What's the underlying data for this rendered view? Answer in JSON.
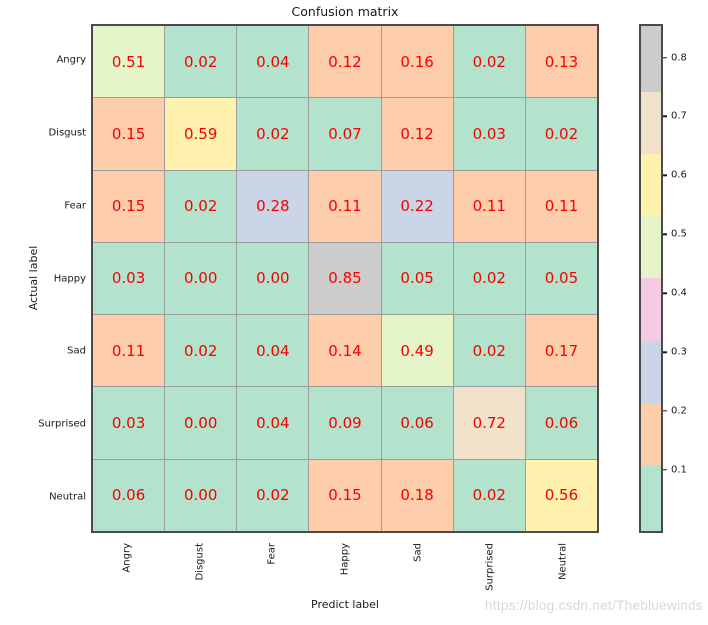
{
  "watermark": "https://blog.csdn.net/Thebluewinds",
  "chart_data": {
    "type": "heatmap",
    "title": "Confusion matrix",
    "xlabel": "Predict label",
    "ylabel": "Actual label",
    "categories": [
      "Angry",
      "Disgust",
      "Fear",
      "Happy",
      "Sad",
      "Surprised",
      "Neutral"
    ],
    "matrix": [
      [
        0.51,
        0.02,
        0.04,
        0.12,
        0.16,
        0.02,
        0.13
      ],
      [
        0.15,
        0.59,
        0.02,
        0.07,
        0.12,
        0.03,
        0.02
      ],
      [
        0.15,
        0.02,
        0.28,
        0.11,
        0.22,
        0.11,
        0.11
      ],
      [
        0.03,
        0.0,
        0.0,
        0.85,
        0.05,
        0.02,
        0.05
      ],
      [
        0.11,
        0.02,
        0.04,
        0.14,
        0.49,
        0.02,
        0.17
      ],
      [
        0.03,
        0.0,
        0.04,
        0.09,
        0.06,
        0.72,
        0.06
      ],
      [
        0.06,
        0.0,
        0.02,
        0.15,
        0.18,
        0.02,
        0.56
      ]
    ],
    "value_format": "2-decimals",
    "cell_text_color": "#f80000",
    "vmin": 0,
    "vmax": 0.85,
    "colormap": "Pastel2",
    "n_color_bins": 8,
    "bin_colors_low_to_high": [
      "#b3e2cd",
      "#fdcdac",
      "#cbd5e8",
      "#f4cae4",
      "#e6f5c9",
      "#fff2ae",
      "#f1e2cc",
      "#cccccc"
    ],
    "colorbar_ticks": [
      0.8,
      0.7,
      0.6,
      0.5,
      0.4,
      0.3,
      0.2,
      0.1
    ],
    "grid": "cell-edges-on",
    "legend": "colorbar-right"
  }
}
